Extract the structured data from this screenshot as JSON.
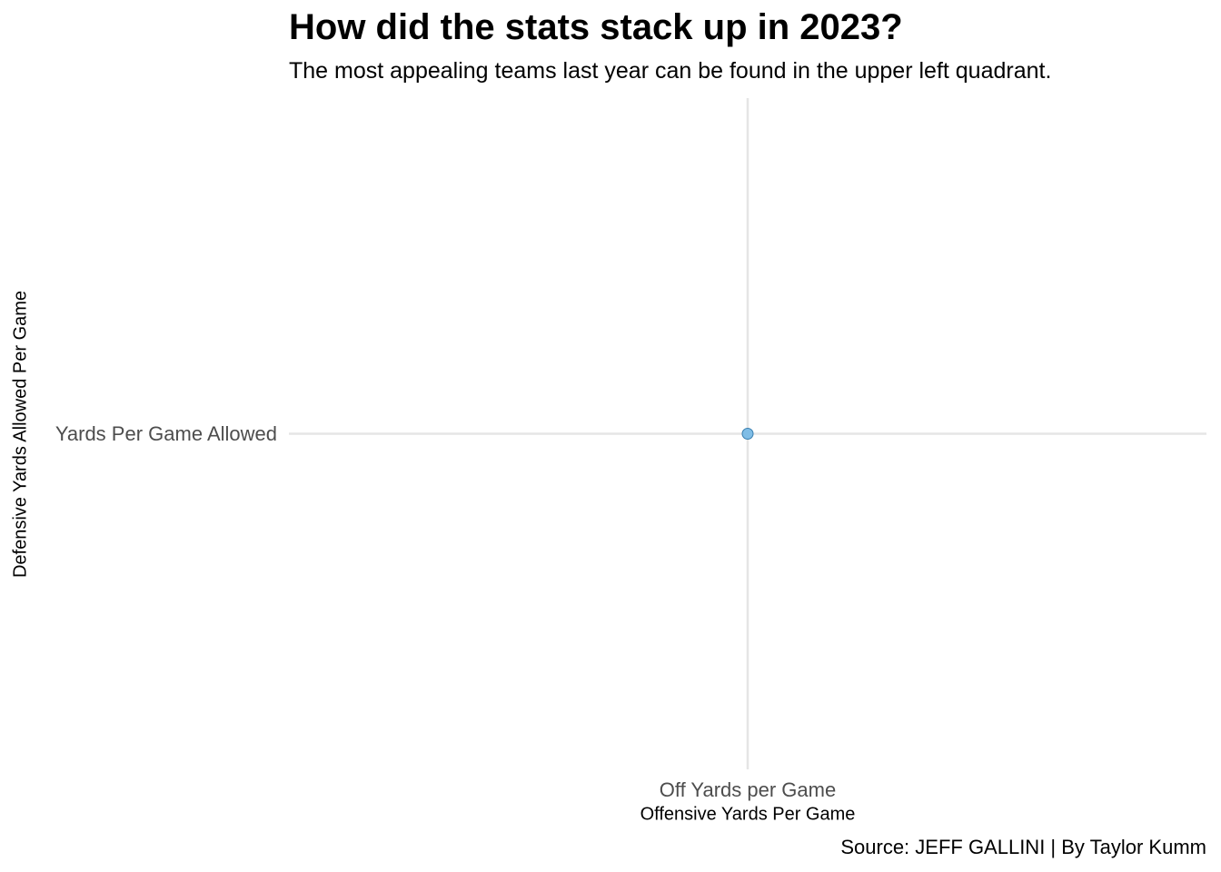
{
  "chart_data": {
    "type": "scatter",
    "title": "How did the stats stack up in 2023?",
    "subtitle": "The most appealing teams last year can be found in the upper left quadrant.",
    "xlabel": "Offensive Yards Per Game",
    "ylabel": "Defensive Yards Allowed Per Game",
    "x_tick_labels": [
      "Off Yards per Game"
    ],
    "y_tick_labels": [
      "Yards Per Game Allowed"
    ],
    "x_type": "categorical",
    "y_type": "categorical",
    "points": [
      {
        "x": "Off Yards per Game",
        "y": "Yards Per Game Allowed"
      }
    ],
    "grid": true,
    "legend": "none",
    "caption": "Source: JEFF GALLINI | By Taylor Kumm",
    "colors": {
      "point_fill": "#7fbde6",
      "point_stroke": "#3a7fb0",
      "grid": "#e5e5e5"
    }
  }
}
